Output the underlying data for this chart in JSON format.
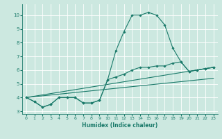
{
  "xlabel": "Humidex (Indice chaleur)",
  "bg_color": "#cce8e0",
  "grid_color": "#ffffff",
  "line_color": "#1a7a6a",
  "xlim": [
    -0.5,
    23.5
  ],
  "ylim": [
    2.8,
    10.8
  ],
  "xticks": [
    0,
    1,
    2,
    3,
    4,
    5,
    6,
    7,
    8,
    9,
    10,
    11,
    12,
    13,
    14,
    15,
    16,
    17,
    18,
    19,
    20,
    21,
    22,
    23
  ],
  "yticks": [
    3,
    4,
    5,
    6,
    7,
    8,
    9,
    10
  ],
  "ytick_labels": [
    "3",
    "4",
    "5",
    "6",
    "7",
    "8",
    "9",
    "10"
  ],
  "series": [
    {
      "x": [
        0,
        1,
        2,
        3,
        4,
        5,
        6,
        7,
        8,
        9,
        10,
        11,
        12,
        13,
        14,
        15,
        16,
        17,
        18,
        19,
        20,
        21,
        22,
        23
      ],
      "y": [
        4.0,
        3.7,
        3.3,
        3.5,
        4.0,
        4.0,
        4.0,
        3.6,
        3.6,
        3.8,
        5.3,
        7.4,
        8.8,
        10.0,
        10.0,
        10.2,
        10.0,
        9.3,
        7.6,
        6.6,
        5.9,
        6.0,
        6.1,
        6.2
      ],
      "marker": true
    },
    {
      "x": [
        0,
        1,
        2,
        3,
        4,
        5,
        6,
        7,
        8,
        9,
        10,
        11,
        12,
        13,
        14,
        15,
        16,
        17,
        18,
        19,
        20,
        21,
        22,
        23
      ],
      "y": [
        4.0,
        3.7,
        3.3,
        3.5,
        4.0,
        4.0,
        4.0,
        3.6,
        3.6,
        3.8,
        5.3,
        5.5,
        5.7,
        6.0,
        6.2,
        6.2,
        6.3,
        6.3,
        6.5,
        6.6,
        5.9,
        6.0,
        6.1,
        6.2
      ],
      "marker": true
    },
    {
      "x": [
        0,
        23
      ],
      "y": [
        4.0,
        6.2
      ],
      "marker": false
    },
    {
      "x": [
        0,
        23
      ],
      "y": [
        4.0,
        5.4
      ],
      "marker": false
    }
  ]
}
